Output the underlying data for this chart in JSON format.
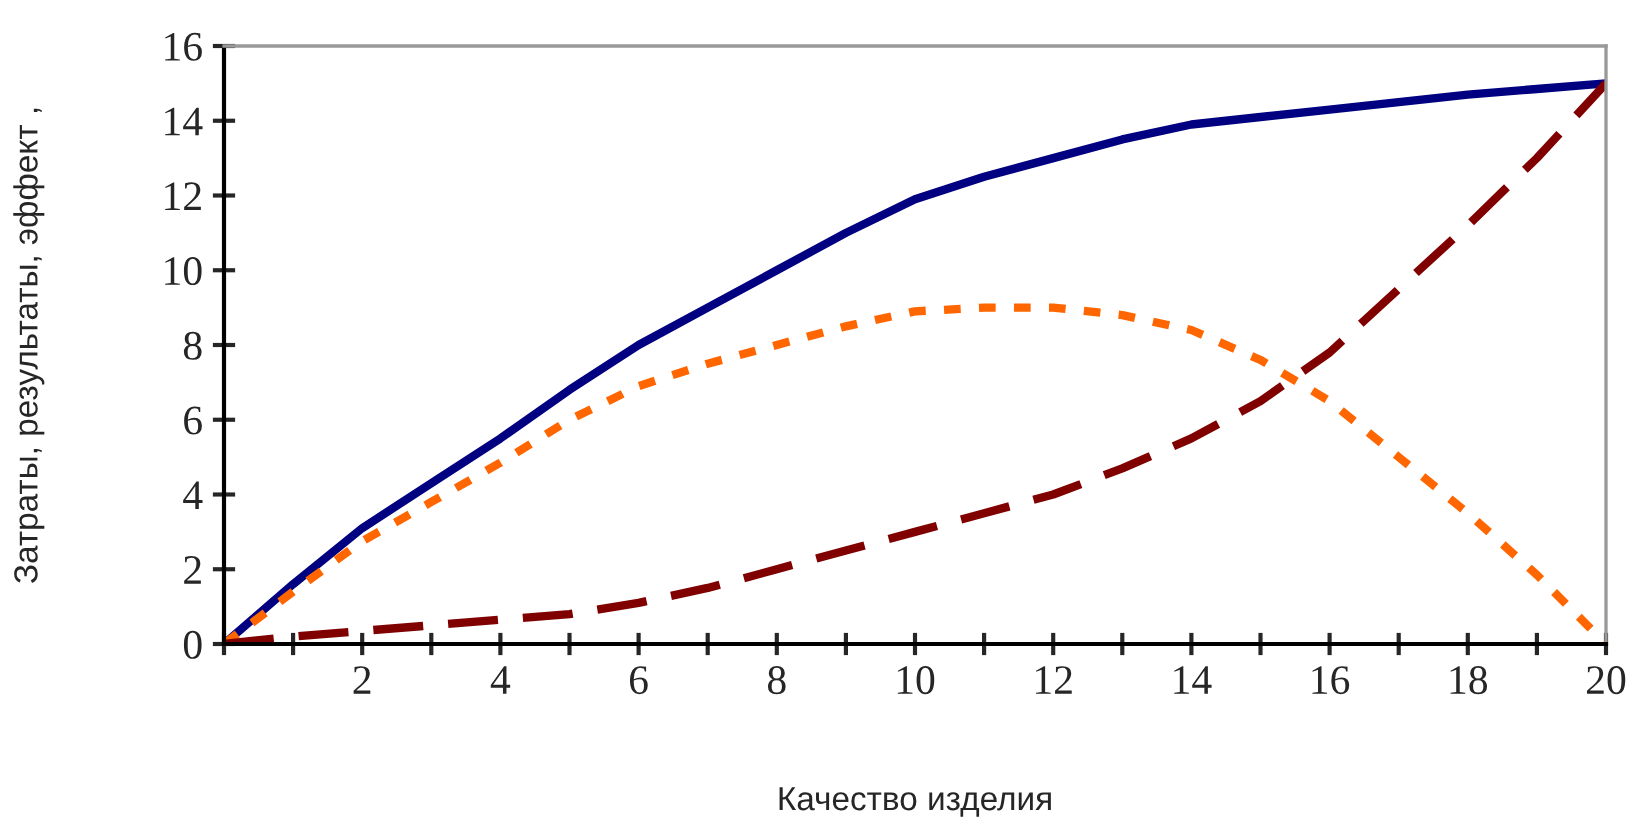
{
  "chart_data": {
    "type": "line",
    "xlabel": "Качество изделия",
    "ylabel": "Затраты, результаты, эффект ,",
    "x": [
      0,
      1,
      2,
      3,
      4,
      5,
      6,
      7,
      8,
      9,
      10,
      11,
      12,
      13,
      14,
      15,
      16,
      17,
      18,
      19,
      20
    ],
    "series": [
      {
        "color": "#000080",
        "line_style": "solid",
        "values": [
          0,
          1.6,
          3.1,
          4.3,
          5.5,
          6.8,
          8,
          9,
          10,
          11,
          11.9,
          12.5,
          13,
          13.5,
          13.9,
          14.1,
          14.3,
          14.5,
          14.7,
          14.85,
          15
        ]
      },
      {
        "color": "#ff6600",
        "line_style": "dotted",
        "values": [
          0,
          1.4,
          2.75,
          3.8,
          4.85,
          6,
          6.9,
          7.5,
          8,
          8.5,
          8.9,
          9,
          9,
          8.8,
          8.4,
          7.6,
          6.5,
          5,
          3.5,
          1.85,
          0
        ]
      },
      {
        "color": "#800000",
        "line_style": "dashed",
        "values": [
          0,
          0.2,
          0.35,
          0.5,
          0.65,
          0.8,
          1.1,
          1.5,
          2,
          2.5,
          3,
          3.5,
          4,
          4.7,
          5.5,
          6.5,
          7.8,
          9.5,
          11.2,
          13,
          15
        ]
      }
    ],
    "xlim": [
      0,
      20
    ],
    "ylim": [
      0,
      16
    ],
    "xticks": [
      {
        "value": 0,
        "label": null
      },
      {
        "value": 1,
        "label": null
      },
      2,
      {
        "value": 3,
        "label": null
      },
      4,
      {
        "value": 5,
        "label": null
      },
      6,
      {
        "value": 7,
        "label": null
      },
      8,
      {
        "value": 9,
        "label": null
      },
      10,
      {
        "value": 11,
        "label": null
      },
      12,
      {
        "value": 13,
        "label": null
      },
      14,
      {
        "value": 15,
        "label": null
      },
      16,
      {
        "value": 17,
        "label": null
      },
      18,
      {
        "value": 19,
        "label": null
      },
      20
    ],
    "yticks": [
      0,
      2,
      4,
      6,
      8,
      10,
      12,
      14,
      16
    ],
    "grid": false,
    "legend": false,
    "marker": "none"
  }
}
